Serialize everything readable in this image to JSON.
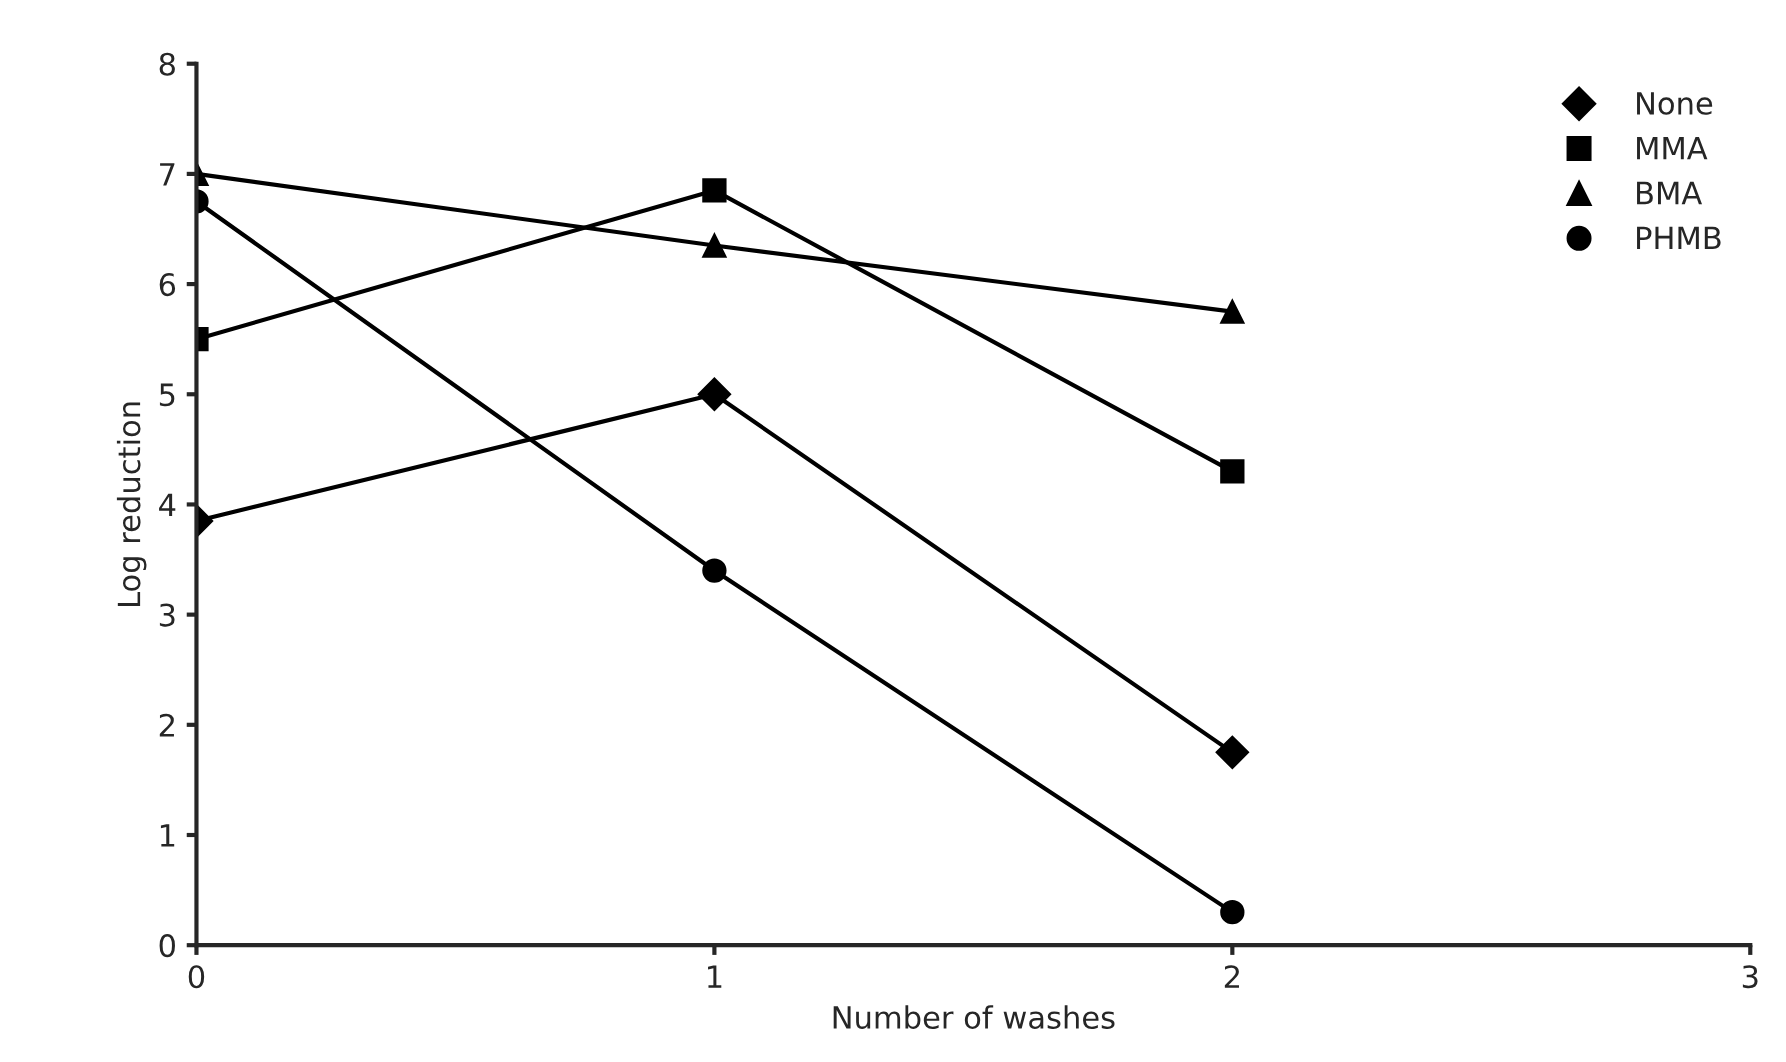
{
  "chart_data": {
    "type": "line",
    "xlabel": "Number of washes",
    "ylabel": "Log reduction",
    "x": [
      0,
      1,
      2
    ],
    "xlim": [
      0,
      3
    ],
    "xticks": [
      0,
      1,
      2,
      3
    ],
    "ylim": [
      0,
      8
    ],
    "yticks": [
      0,
      1,
      2,
      3,
      4,
      5,
      6,
      7,
      8
    ],
    "grid": false,
    "legend": "top right",
    "line_style": "solid",
    "series": [
      {
        "name": "None",
        "color": "#000000",
        "marker": "diamond",
        "values": [
          3.85,
          5.0,
          1.75
        ]
      },
      {
        "name": "MMA",
        "color": "#000000",
        "marker": "square",
        "values": [
          5.5,
          6.85,
          4.3
        ]
      },
      {
        "name": "BMA",
        "color": "#000000",
        "marker": "triangle",
        "values": [
          7.0,
          6.35,
          5.75
        ]
      },
      {
        "name": "PHMB",
        "color": "#000000",
        "marker": "circle",
        "values": [
          6.75,
          3.4,
          0.3
        ]
      }
    ]
  }
}
